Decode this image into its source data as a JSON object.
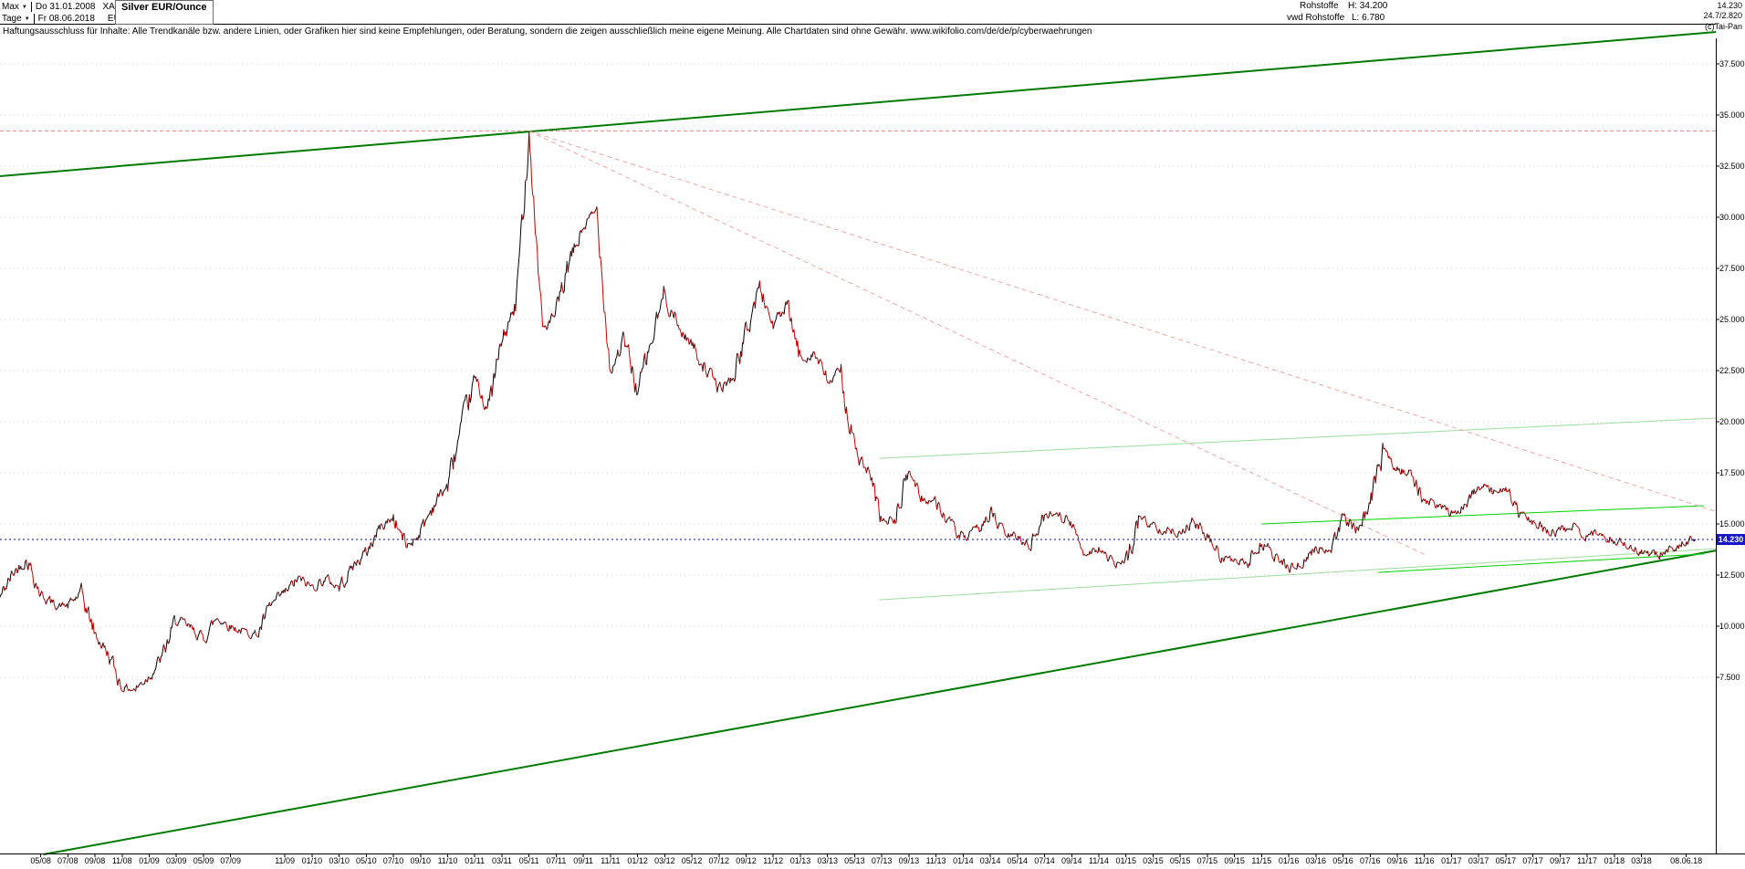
{
  "header": {
    "range_button": "Max",
    "period_button": "Tage",
    "dropdown_arrow": "▼",
    "first_date": "Do 31.01.2008",
    "symbol": "XAGEUR",
    "last_date": "Fr 08.06.2018",
    "currency": "EUR",
    "title": "Silver EUR/Ounce",
    "category": "Rohstoffe",
    "source": "vwd Rohstoffe",
    "high_label": "H: 34.200",
    "low_label": "L: 6.780",
    "last_price": "14.230",
    "change_info": "24.7/2.820",
    "copyright": "(c)Tai-Pan"
  },
  "disclaimer": "Haftungsausschluss für Inhalte: Alle Trendkanäle bzw. andere Linien, oder Grafiken hier sind keine Empfehlungen, oder Beratung, sondern die zeigen ausschließlich meine eigene Meinung. Alle Chartdaten sind ohne Gewähr.  www.wikifolio.com/de/de/p/cyberwaehrungen",
  "price_tag": "14.230",
  "chart_data": {
    "type": "line",
    "title": "Silver EUR/Ounce",
    "symbol": "XAGEUR",
    "currency": "EUR",
    "period_start": "Do 31.01.2008",
    "period_end": "Fr 08.06.2018",
    "high": 34.2,
    "low": 6.78,
    "last": 14.23,
    "monthly_start": "2008-01",
    "monthly_values": [
      11.4,
      12.6,
      13.3,
      11.6,
      11.0,
      11.0,
      11.6,
      9.6,
      8.6,
      7.0,
      6.9,
      7.6,
      8.5,
      10.3,
      9.9,
      9.4,
      10.4,
      10.0,
      9.7,
      9.6,
      11.0,
      11.6,
      12.3,
      11.9,
      12.3,
      11.9,
      12.9,
      13.6,
      14.8,
      15.3,
      13.9,
      14.6,
      16.0,
      16.9,
      19.6,
      22.0,
      20.6,
      23.9,
      25.6,
      34.0,
      24.5,
      25.2,
      27.8,
      29.5,
      30.3,
      22.5,
      24.0,
      21.5,
      23.8,
      26.3,
      24.6,
      23.8,
      22.6,
      21.6,
      22.1,
      24.3,
      26.6,
      24.7,
      25.6,
      23.0,
      23.4,
      21.9,
      22.4,
      18.6,
      17.4,
      15.1,
      15.2,
      17.6,
      16.2,
      16.1,
      15.0,
      14.2,
      14.6,
      15.6,
      14.5,
      14.3,
      14.0,
      15.4,
      15.6,
      14.9,
      13.6,
      13.8,
      13.0,
      13.1,
      15.3,
      14.9,
      14.7,
      14.6,
      15.1,
      14.3,
      13.4,
      13.1,
      13.1,
      14.1,
      13.4,
      12.8,
      13.1,
      13.8,
      13.7,
      15.3,
      14.7,
      15.8,
      18.6,
      17.8,
      17.4,
      16.1,
      15.9,
      15.5,
      16.0,
      16.9,
      16.5,
      16.7,
      15.5,
      15.1,
      14.6,
      14.6,
      14.9,
      14.4,
      14.5,
      14.2,
      14.0,
      13.6,
      13.4,
      13.7,
      14.1,
      14.23
    ],
    "y_ticks": [
      [
        "37.500",
        37.5
      ],
      [
        "35.000",
        35.0
      ],
      [
        "32.500",
        32.5
      ],
      [
        "30.000",
        30.0
      ],
      [
        "27.500",
        27.5
      ],
      [
        "25.000",
        25.0
      ],
      [
        "22.500",
        22.5
      ],
      [
        "20.000",
        20.0
      ],
      [
        "17.500",
        17.5
      ],
      [
        "15.000",
        15.0
      ],
      [
        "12.500",
        12.5
      ],
      [
        "10.000",
        10.0
      ],
      [
        "7.500",
        7.5
      ]
    ],
    "x_ticks": [
      [
        "05/08",
        3
      ],
      [
        "07/08",
        5
      ],
      [
        "09/08",
        7
      ],
      [
        "11/08",
        9
      ],
      [
        "01/09",
        11
      ],
      [
        "03/09",
        13
      ],
      [
        "05/09",
        15
      ],
      [
        "07/09",
        17
      ],
      [
        "11/09",
        21
      ],
      [
        "01/10",
        23
      ],
      [
        "03/10",
        25
      ],
      [
        "05/10",
        27
      ],
      [
        "07/10",
        29
      ],
      [
        "09/10",
        31
      ],
      [
        "11/10",
        33
      ],
      [
        "01/11",
        35
      ],
      [
        "03/11",
        37
      ],
      [
        "05/11",
        39
      ],
      [
        "07/11",
        41
      ],
      [
        "09/11",
        43
      ],
      [
        "11/11",
        45
      ],
      [
        "01/12",
        47
      ],
      [
        "03/12",
        49
      ],
      [
        "05/12",
        51
      ],
      [
        "07/12",
        53
      ],
      [
        "09/12",
        55
      ],
      [
        "11/12",
        57
      ],
      [
        "01/13",
        59
      ],
      [
        "03/13",
        61
      ],
      [
        "05/13",
        63
      ],
      [
        "07/13",
        65
      ],
      [
        "09/13",
        67
      ],
      [
        "11/13",
        69
      ],
      [
        "01/14",
        71
      ],
      [
        "03/14",
        73
      ],
      [
        "05/14",
        75
      ],
      [
        "07/14",
        77
      ],
      [
        "09/14",
        79
      ],
      [
        "11/14",
        81
      ],
      [
        "01/15",
        83
      ],
      [
        "03/15",
        85
      ],
      [
        "05/15",
        87
      ],
      [
        "07/15",
        89
      ],
      [
        "09/15",
        91
      ],
      [
        "11/15",
        93
      ],
      [
        "01/16",
        95
      ],
      [
        "03/16",
        97
      ],
      [
        "05/16",
        99
      ],
      [
        "07/16",
        101
      ],
      [
        "09/16",
        103
      ],
      [
        "11/16",
        105
      ],
      [
        "01/17",
        107
      ],
      [
        "03/17",
        109
      ],
      [
        "05/17",
        111
      ],
      [
        "07/17",
        113
      ],
      [
        "09/17",
        115
      ],
      [
        "11/17",
        117
      ],
      [
        "01/18",
        119
      ],
      [
        "03/18",
        121
      ],
      [
        "08.06.18",
        124.3
      ]
    ],
    "h_lines": [
      {
        "value": 34.2,
        "color": "#ee8a8a",
        "dash": "4,3",
        "width": 1,
        "name": "all-time-high-line"
      },
      {
        "value": 14.23,
        "color": "#0000cc",
        "dash": "2,3",
        "width": 1,
        "name": "last-price-line"
      }
    ],
    "trend_lines": [
      {
        "m1": 0.0,
        "v1": 32.0,
        "m2": 126.5,
        "v2": 39.05,
        "color": "#007a00",
        "width": 2,
        "dash": "",
        "name": "upper-channel-line"
      },
      {
        "m1": 3.2,
        "v1": -1.17,
        "m2": 126.5,
        "v2": 13.69,
        "color": "#007a00",
        "width": 2,
        "dash": "",
        "name": "lower-channel-line"
      },
      {
        "m1": 64.8,
        "v1": 18.2,
        "m2": 126.5,
        "v2": 20.17,
        "color": "#9ddc9d",
        "width": 1,
        "dash": "",
        "name": "mid-channel-upper-line"
      },
      {
        "m1": 64.8,
        "v1": 11.28,
        "m2": 126.5,
        "v2": 13.78,
        "color": "#9ddc9d",
        "width": 1,
        "dash": "",
        "name": "mid-channel-lower-line"
      },
      {
        "m1": 93.0,
        "v1": 14.99,
        "m2": 125.6,
        "v2": 15.88,
        "color": "#00d400",
        "width": 1,
        "dash": "",
        "name": "recent-resistance-line"
      },
      {
        "m1": 101.6,
        "v1": 12.62,
        "m2": 125.6,
        "v2": 13.52,
        "color": "#00d400",
        "width": 1,
        "dash": "",
        "name": "recent-support-line"
      },
      {
        "m1": 39.0,
        "v1": 34.2,
        "m2": 126.5,
        "v2": 15.6,
        "color": "#f2a4a4",
        "width": 1,
        "dash": "5,4",
        "name": "downtrend-line-a"
      },
      {
        "m1": 39.0,
        "v1": 34.2,
        "m2": 105.0,
        "v2": 13.5,
        "color": "#f2a4a4",
        "width": 1,
        "dash": "5,4",
        "name": "downtrend-line-b"
      }
    ],
    "colors": {
      "up": "#000000",
      "down": "#cc0000",
      "grid": "#d6d6d6",
      "axis": "#000000"
    },
    "legend_position": "none",
    "grid": "dotted-horizontal"
  }
}
